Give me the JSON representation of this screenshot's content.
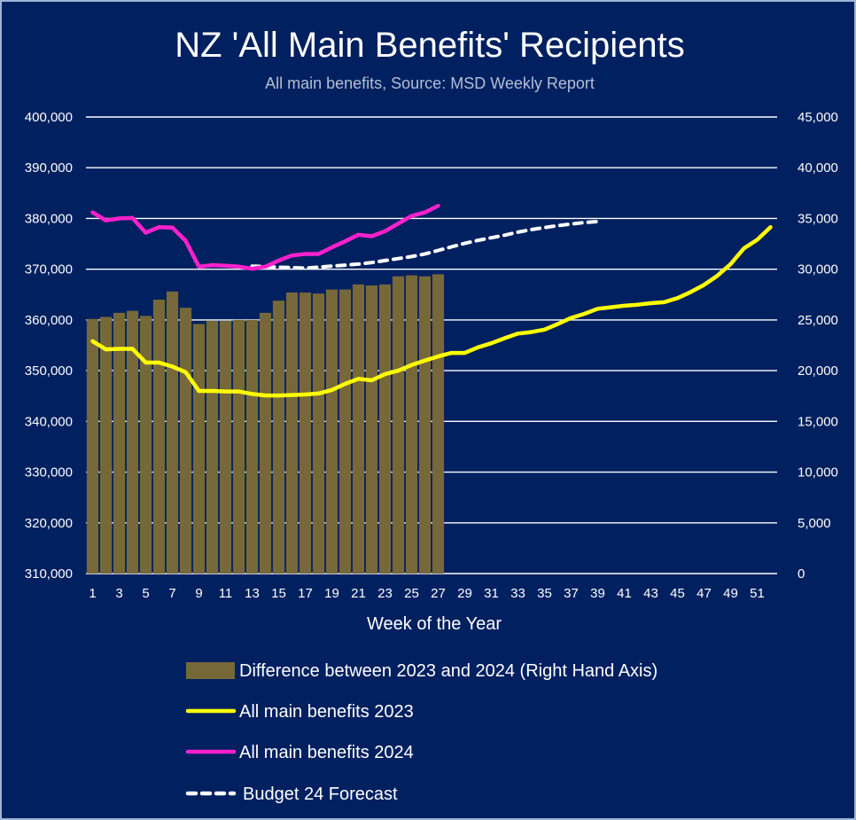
{
  "chart_data": {
    "type": "bar+line",
    "title": "NZ 'All Main Benefits' Recipients",
    "subtitle": "All main benefits, Source: MSD Weekly Report",
    "xlabel": "Week of the Year",
    "ylim_left": [
      310000,
      400000
    ],
    "ylim_right": [
      0,
      45000
    ],
    "y_ticks_left": [
      "310,000",
      "320,000",
      "330,000",
      "340,000",
      "350,000",
      "360,000",
      "370,000",
      "380,000",
      "390,000",
      "400,000"
    ],
    "y_ticks_right": [
      "0",
      "5,000",
      "10,000",
      "15,000",
      "20,000",
      "25,000",
      "30,000",
      "35,000",
      "40,000",
      "45,000"
    ],
    "x_ticks": [
      "1",
      "3",
      "5",
      "7",
      "9",
      "11",
      "13",
      "15",
      "17",
      "19",
      "21",
      "23",
      "25",
      "27",
      "29",
      "31",
      "33",
      "35",
      "37",
      "39",
      "41",
      "43",
      "45",
      "47",
      "49",
      "51"
    ],
    "weeks": [
      1,
      2,
      3,
      4,
      5,
      6,
      7,
      8,
      9,
      10,
      11,
      12,
      13,
      14,
      15,
      16,
      17,
      18,
      19,
      20,
      21,
      22,
      23,
      24,
      25,
      26,
      27,
      28,
      29,
      30,
      31,
      32,
      33,
      34,
      35,
      36,
      37,
      38,
      39,
      40,
      41,
      42,
      43,
      44,
      45,
      46,
      47,
      48,
      49,
      50,
      51,
      52
    ],
    "series": [
      {
        "name": "Difference between 2023 and 2024 (Right Hand Axis)",
        "kind": "bar",
        "axis": "right",
        "color": "#77683a",
        "x": [
          1,
          2,
          3,
          4,
          5,
          6,
          7,
          8,
          9,
          10,
          11,
          12,
          13,
          14,
          15,
          16,
          17,
          18,
          19,
          20,
          21,
          22,
          23,
          24,
          25,
          26,
          27
        ],
        "values": [
          25100,
          25300,
          25700,
          25900,
          25400,
          27000,
          27800,
          26200,
          24600,
          24900,
          24900,
          25000,
          25000,
          25700,
          26900,
          27700,
          27700,
          27600,
          28000,
          28000,
          28500,
          28400,
          28500,
          29300,
          29400,
          29300,
          29500
        ]
      },
      {
        "name": "All main benefits 2023",
        "kind": "line",
        "axis": "left",
        "color": "#ffff00",
        "dash": false,
        "x": [
          1,
          2,
          3,
          4,
          5,
          6,
          7,
          8,
          9,
          10,
          11,
          12,
          13,
          14,
          15,
          16,
          17,
          18,
          19,
          20,
          21,
          22,
          23,
          24,
          25,
          26,
          27,
          28,
          29,
          30,
          31,
          32,
          33,
          34,
          35,
          36,
          37,
          38,
          39,
          40,
          41,
          42,
          43,
          44,
          45,
          46,
          47,
          48,
          49,
          50,
          51,
          52
        ],
        "values": [
          355800,
          354200,
          354300,
          354300,
          351600,
          351600,
          350800,
          349700,
          346000,
          346000,
          345900,
          345900,
          345400,
          345100,
          345100,
          345200,
          345300,
          345500,
          346200,
          347400,
          348400,
          348100,
          349300,
          350000,
          351100,
          352000,
          352800,
          353500,
          353500,
          354600,
          355400,
          356400,
          357300,
          357600,
          358100,
          359200,
          360400,
          361200,
          362200,
          362500,
          362800,
          363000,
          363300,
          363500,
          364300,
          365500,
          366900,
          368700,
          371000,
          374100,
          375800,
          378300
        ]
      },
      {
        "name": "All main benefits 2024",
        "kind": "line",
        "axis": "left",
        "color": "#ff21cc",
        "dash": false,
        "x": [
          1,
          2,
          3,
          4,
          5,
          6,
          7,
          8,
          9,
          10,
          11,
          12,
          13,
          14,
          15,
          16,
          17,
          18,
          19,
          20,
          21,
          22,
          23,
          24,
          25,
          26,
          27
        ],
        "values": [
          381200,
          379600,
          380000,
          380100,
          377200,
          378300,
          378200,
          375600,
          370500,
          370800,
          370700,
          370500,
          370100,
          370500,
          371700,
          372700,
          373000,
          373000,
          374300,
          375500,
          376800,
          376500,
          377500,
          379000,
          380500,
          381200,
          382500
        ]
      },
      {
        "name": "Budget 24 Forecast",
        "kind": "line",
        "axis": "left",
        "color": "#ffffff",
        "dash": true,
        "x": [
          13,
          14,
          15,
          16,
          17,
          18,
          19,
          20,
          21,
          22,
          23,
          24,
          25,
          26,
          27,
          28,
          29,
          30,
          31,
          32,
          33,
          34,
          35,
          36,
          37,
          38,
          39
        ],
        "values": [
          370600,
          370500,
          370400,
          370300,
          370200,
          370400,
          370600,
          370800,
          371000,
          371300,
          371700,
          372100,
          372500,
          373000,
          373700,
          374400,
          375100,
          375700,
          376200,
          376700,
          377300,
          377800,
          378200,
          378600,
          378900,
          379200,
          379400
        ]
      }
    ]
  }
}
